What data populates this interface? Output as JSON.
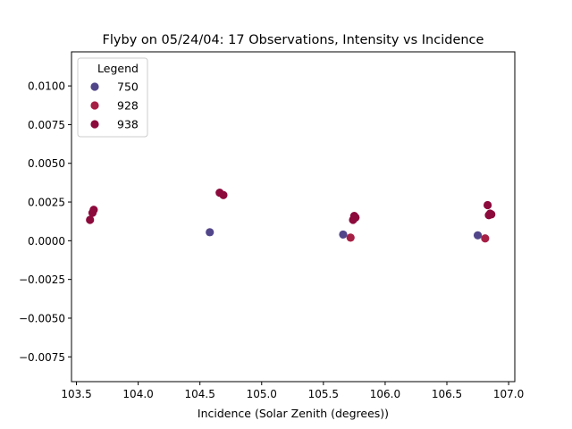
{
  "chart_data": {
    "type": "scatter",
    "title": "Flyby on 05/24/04: 17 Observations, Intensity vs Incidence",
    "xlabel": "Incidence (Solar Zenith (degrees))",
    "ylabel": "",
    "xlim": [
      103.46,
      107.05
    ],
    "ylim": [
      -0.0091,
      0.0122
    ],
    "xticks": [
      "103.5",
      "104.0",
      "104.5",
      "105.0",
      "105.5",
      "106.0",
      "106.5",
      "107.0"
    ],
    "yticks": [
      "−0.0075",
      "−0.0050",
      "−0.0025",
      "0.0000",
      "0.0025",
      "0.0050",
      "0.0075",
      "0.0100"
    ],
    "grid": false,
    "legend": {
      "title": "Legend",
      "placement": "upper-left",
      "entries": [
        "750",
        "928",
        "938"
      ]
    },
    "series": [
      {
        "name": "750",
        "color": "#52468a",
        "points": [
          [
            104.58,
            0.00055
          ],
          [
            105.66,
            0.0004
          ],
          [
            106.75,
            0.00035
          ]
        ]
      },
      {
        "name": "928",
        "color": "#a61f45",
        "points": [
          [
            105.72,
            0.0002
          ],
          [
            106.81,
            0.00015
          ]
        ]
      },
      {
        "name": "938",
        "color": "#8c0a3c",
        "points": [
          [
            103.61,
            0.00135
          ],
          [
            103.63,
            0.0018
          ],
          [
            103.64,
            0.002
          ],
          [
            104.66,
            0.0031
          ],
          [
            104.69,
            0.00295
          ],
          [
            105.74,
            0.00135
          ],
          [
            105.75,
            0.0016
          ],
          [
            105.76,
            0.0015
          ],
          [
            106.83,
            0.0023
          ],
          [
            106.84,
            0.00165
          ],
          [
            106.86,
            0.0017
          ],
          [
            106.85,
            0.00175
          ]
        ]
      }
    ]
  }
}
